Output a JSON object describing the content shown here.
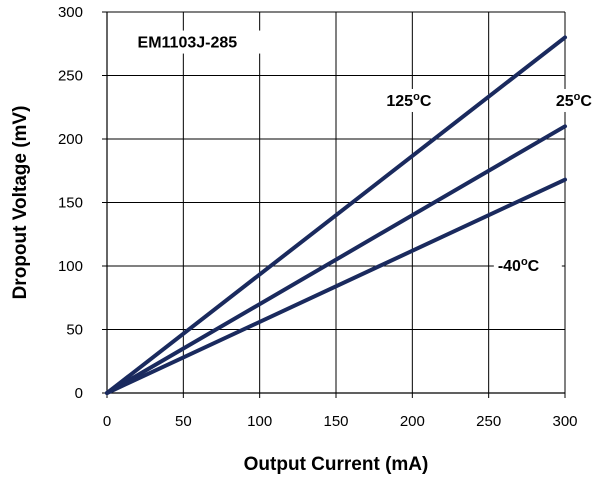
{
  "chart_data": {
    "type": "line",
    "title": "",
    "xlabel": "Output Current (mA)",
    "ylabel": "Dropout Voltage (mV)",
    "xlim": [
      0,
      300
    ],
    "ylim": [
      0,
      300
    ],
    "xticks": [
      "0",
      "50",
      "100",
      "150",
      "200",
      "250",
      "300"
    ],
    "yticks": [
      "0",
      "50",
      "100",
      "150",
      "200",
      "250",
      "300"
    ],
    "grid": true,
    "series_color": "#1a2a5e",
    "series": [
      {
        "x": [
          0,
          300
        ],
        "y": [
          0,
          280
        ]
      },
      {
        "x": [
          0,
          300
        ],
        "y": [
          0,
          210
        ]
      },
      {
        "x": [
          0,
          300
        ],
        "y": [
          0,
          168
        ]
      }
    ],
    "annotations": [
      {
        "text": "EM1103J-285",
        "x": 20,
        "y": 272
      },
      {
        "text": "125",
        "sup": "o",
        "unit": "C",
        "x": 183,
        "y": 226
      },
      {
        "text": "25",
        "sup": "o",
        "unit": "C",
        "x": 294,
        "y": 226
      },
      {
        "text": "-40",
        "sup": "o",
        "unit": "C",
        "x": 256,
        "y": 96
      }
    ]
  }
}
